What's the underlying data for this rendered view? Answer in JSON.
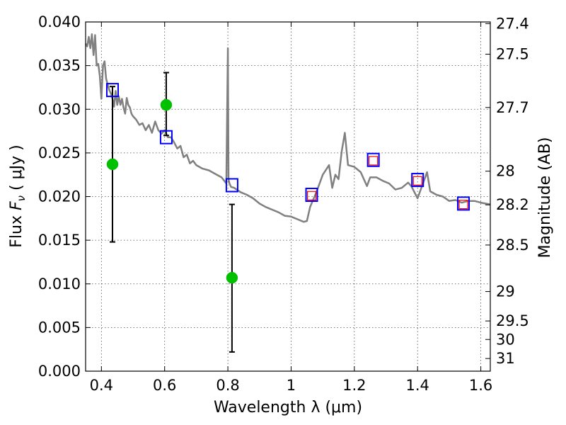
{
  "chart_data": {
    "type": "scatter",
    "xlabel": "Wavelength  λ (μm)",
    "ylabel_left": {
      "prefix": "Flux  ",
      "var": "F",
      "sub": "ν",
      "units": " ( μJy )"
    },
    "ylabel_right": "Magnitude (AB)",
    "xlim": [
      0.35,
      1.63
    ],
    "ylim": [
      0.0,
      0.04
    ],
    "grid": true,
    "x_ticks": [
      0.4,
      0.6,
      0.8,
      1.0,
      1.2,
      1.4,
      1.6
    ],
    "x_tick_labels": [
      "0.4",
      "0.6",
      "0.8",
      "1",
      "1.2",
      "1.4",
      "1.6"
    ],
    "y_ticks": [
      0.0,
      0.005,
      0.01,
      0.015,
      0.02,
      0.025,
      0.03,
      0.035,
      0.04
    ],
    "y_tick_labels": [
      "0.000",
      "0.005",
      "0.010",
      "0.015",
      "0.020",
      "0.025",
      "0.030",
      "0.035",
      "0.040"
    ],
    "right_ticks": [
      {
        "label": "27.4",
        "flux": 0.03981
      },
      {
        "label": "27.5",
        "flux": 0.03631
      },
      {
        "label": "27.7",
        "flux": 0.0302
      },
      {
        "label": "28",
        "flux": 0.02291
      },
      {
        "label": "28.2",
        "flux": 0.01905
      },
      {
        "label": "28.5",
        "flux": 0.01445
      },
      {
        "label": "29",
        "flux": 0.00912
      },
      {
        "label": "29.5",
        "flux": 0.00575
      },
      {
        "label": "30",
        "flux": 0.00363
      },
      {
        "label": "31",
        "flux": 0.00145
      }
    ],
    "model_spectrum": {
      "color": "#808080",
      "x": [
        0.35,
        0.355,
        0.36,
        0.365,
        0.37,
        0.375,
        0.38,
        0.385,
        0.39,
        0.395,
        0.4,
        0.405,
        0.41,
        0.415,
        0.42,
        0.425,
        0.43,
        0.435,
        0.44,
        0.445,
        0.45,
        0.455,
        0.46,
        0.465,
        0.47,
        0.475,
        0.48,
        0.485,
        0.49,
        0.495,
        0.5,
        0.51,
        0.52,
        0.53,
        0.54,
        0.55,
        0.56,
        0.57,
        0.58,
        0.59,
        0.6,
        0.61,
        0.62,
        0.63,
        0.64,
        0.65,
        0.66,
        0.67,
        0.68,
        0.69,
        0.7,
        0.72,
        0.74,
        0.76,
        0.78,
        0.795,
        0.8,
        0.802,
        0.805,
        0.81,
        0.82,
        0.84,
        0.86,
        0.88,
        0.9,
        0.92,
        0.94,
        0.96,
        0.98,
        1.0,
        1.02,
        1.04,
        1.05,
        1.06,
        1.08,
        1.1,
        1.12,
        1.13,
        1.14,
        1.15,
        1.16,
        1.17,
        1.18,
        1.2,
        1.22,
        1.24,
        1.25,
        1.27,
        1.29,
        1.31,
        1.33,
        1.35,
        1.37,
        1.38,
        1.4,
        1.42,
        1.43,
        1.44,
        1.46,
        1.48,
        1.5,
        1.52,
        1.54,
        1.56,
        1.58,
        1.6,
        1.63
      ],
      "y": [
        0.0375,
        0.0372,
        0.0383,
        0.037,
        0.0386,
        0.0362,
        0.0385,
        0.035,
        0.0352,
        0.0338,
        0.0312,
        0.035,
        0.0355,
        0.0335,
        0.0328,
        0.0322,
        0.0318,
        0.0312,
        0.0303,
        0.0321,
        0.0305,
        0.0315,
        0.0305,
        0.0312,
        0.0302,
        0.0295,
        0.0313,
        0.0305,
        0.0302,
        0.0295,
        0.0292,
        0.0288,
        0.0282,
        0.0284,
        0.0276,
        0.0282,
        0.0273,
        0.0286,
        0.0276,
        0.0272,
        0.0276,
        0.0268,
        0.0268,
        0.0262,
        0.0255,
        0.0258,
        0.0245,
        0.0248,
        0.0238,
        0.0241,
        0.0236,
        0.0232,
        0.023,
        0.0226,
        0.0222,
        0.0215,
        0.037,
        0.022,
        0.0215,
        0.0211,
        0.021,
        0.0205,
        0.0202,
        0.0198,
        0.0192,
        0.0188,
        0.0185,
        0.0182,
        0.0178,
        0.0177,
        0.0174,
        0.0171,
        0.0172,
        0.0188,
        0.0205,
        0.0225,
        0.0236,
        0.021,
        0.0225,
        0.022,
        0.0252,
        0.0273,
        0.0236,
        0.0234,
        0.0228,
        0.0212,
        0.0222,
        0.0222,
        0.0218,
        0.0215,
        0.0208,
        0.021,
        0.0216,
        0.0212,
        0.0198,
        0.0218,
        0.0228,
        0.0206,
        0.0202,
        0.02,
        0.0195,
        0.0196,
        0.0193,
        0.0195,
        0.0195,
        0.0193,
        0.0191
      ]
    },
    "model_photometry_blue_squares": {
      "color": "#0000ff",
      "x": [
        0.435,
        0.605,
        0.813,
        1.065,
        1.26,
        1.4,
        1.545
      ],
      "y": [
        0.0322,
        0.0268,
        0.0213,
        0.0202,
        0.0242,
        0.0219,
        0.0192
      ]
    },
    "observed_photometry_red_squares": {
      "color": "#ff0000",
      "x": [
        1.065,
        1.26,
        1.4,
        1.545
      ],
      "y": [
        0.0201,
        0.0241,
        0.0218,
        0.0191
      ]
    },
    "observed_green_points": {
      "color": "#00c000",
      "x": [
        0.435,
        0.605,
        0.813
      ],
      "y": [
        0.0237,
        0.0305,
        0.0107
      ],
      "err_low": [
        0.0148,
        0.027,
        0.0022
      ],
      "err_high": [
        0.0326,
        0.0342,
        0.0191
      ]
    }
  }
}
